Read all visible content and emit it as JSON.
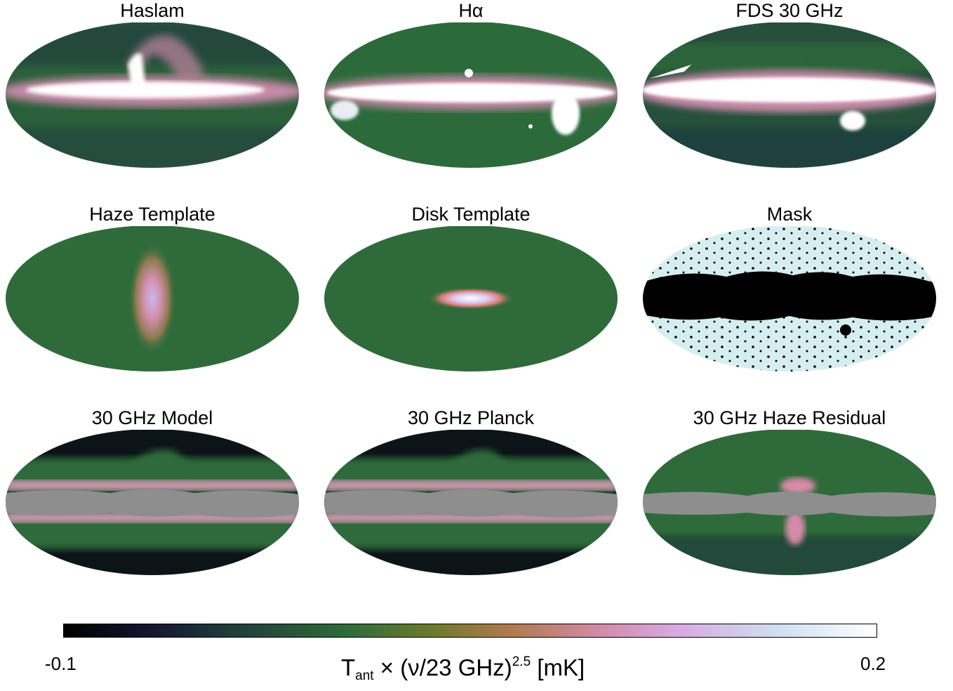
{
  "panels": [
    {
      "id": "haslam",
      "title": "Haslam"
    },
    {
      "id": "halpha",
      "title": "Hα"
    },
    {
      "id": "fds",
      "title": "FDS 30 GHz"
    },
    {
      "id": "haze",
      "title": "Haze Template"
    },
    {
      "id": "disk",
      "title": "Disk Template"
    },
    {
      "id": "mask",
      "title": "Mask"
    },
    {
      "id": "model",
      "title": "30 GHz Model"
    },
    {
      "id": "planck",
      "title": "30 GHz Planck"
    },
    {
      "id": "residual",
      "title": "30 GHz Haze Residual"
    }
  ],
  "colorbar": {
    "min_label": "-0.1",
    "max_label": "0.2",
    "label_main": "T",
    "label_sub": "ant",
    "label_mid": " × (ν/23 GHz)",
    "label_sup": "2.5",
    "label_end": " [mK]",
    "colors": [
      "#000000",
      "#2f6b3a",
      "#d08aa0",
      "#ffffff"
    ]
  }
}
